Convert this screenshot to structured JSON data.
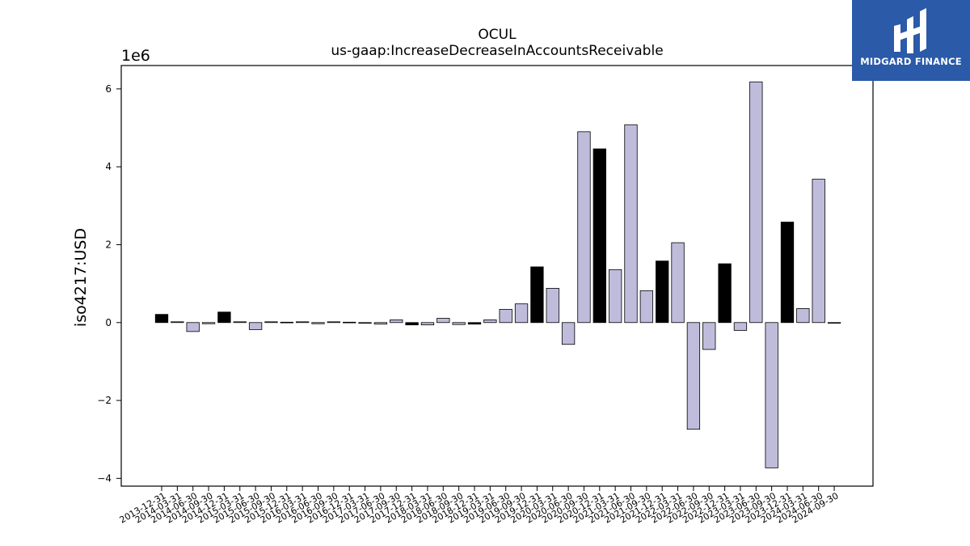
{
  "brand": {
    "name": "MIDGARD FINANCE",
    "bg": "#2a5aa8"
  },
  "chart_data": {
    "type": "bar",
    "title": "OCUL",
    "subtitle": "us-gaap:IncreaseDecreaseInAccountsReceivable",
    "ylabel": "iso4217:USD",
    "y_multiplier_label": "1e6",
    "ylim": [
      -4.2,
      6.6
    ],
    "yticks": [
      -4,
      -2,
      0,
      2,
      4,
      6
    ],
    "ytick_labels": [
      "−4",
      "−2",
      "0",
      "2",
      "4",
      "6"
    ],
    "grid": false,
    "colors": {
      "annual": "#000000",
      "quarterly": "#bfbcdb"
    },
    "categories": [
      "2013-12-31",
      "2014-03-31",
      "2014-06-30",
      "2014-09-30",
      "2014-12-31",
      "2015-03-31",
      "2015-06-30",
      "2015-09-30",
      "2015-12-31",
      "2016-03-31",
      "2016-06-30",
      "2016-09-30",
      "2016-12-31",
      "2017-03-31",
      "2017-06-30",
      "2017-09-30",
      "2017-12-31",
      "2018-03-31",
      "2018-06-30",
      "2018-09-30",
      "2018-12-31",
      "2019-03-31",
      "2019-06-30",
      "2019-09-30",
      "2019-12-31",
      "2020-03-31",
      "2020-06-30",
      "2020-09-30",
      "2020-12-31",
      "2021-03-31",
      "2021-06-30",
      "2021-09-30",
      "2021-12-31",
      "2022-03-31",
      "2022-06-30",
      "2022-09-30",
      "2022-12-31",
      "2023-03-31",
      "2023-06-30",
      "2023-09-30",
      "2023-12-31",
      "2024-03-31",
      "2024-06-30",
      "2024-09-30"
    ],
    "values": [
      0.21,
      0.02,
      -0.23,
      -0.03,
      0.27,
      0.02,
      -0.18,
      0.02,
      0.01,
      0.02,
      -0.03,
      0.02,
      0.01,
      -0.02,
      -0.04,
      0.07,
      -0.06,
      -0.06,
      0.11,
      -0.05,
      -0.04,
      0.07,
      0.34,
      0.48,
      1.43,
      0.88,
      -0.56,
      4.9,
      4.46,
      1.36,
      5.08,
      0.82,
      1.58,
      2.05,
      -2.74,
      -0.69,
      1.51,
      -0.2,
      6.18,
      -3.73,
      2.58,
      0.36,
      3.68,
      0.0
    ],
    "annual": [
      true,
      false,
      false,
      false,
      true,
      false,
      false,
      false,
      true,
      false,
      false,
      false,
      true,
      false,
      false,
      false,
      true,
      false,
      false,
      false,
      true,
      false,
      false,
      false,
      true,
      false,
      false,
      false,
      true,
      false,
      false,
      false,
      true,
      false,
      false,
      false,
      true,
      false,
      false,
      false,
      true,
      false,
      false,
      false
    ]
  }
}
